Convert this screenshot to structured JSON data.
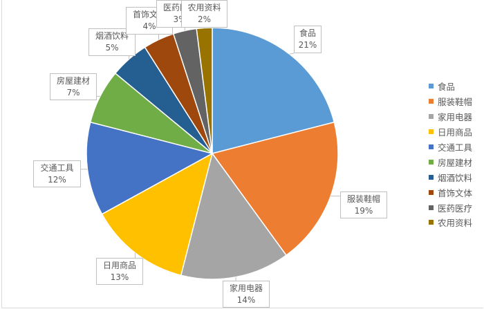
{
  "chart_data": {
    "type": "pie",
    "categories": [
      "食品",
      "服装鞋帽",
      "家用电器",
      "日用商品",
      "交通工具",
      "房屋建材",
      "烟酒饮料",
      "首饰文体",
      "医药医疗",
      "农用资料"
    ],
    "values": [
      21,
      19,
      14,
      13,
      12,
      7,
      5,
      4,
      3,
      2
    ],
    "data_labels": [
      "21%",
      "19%",
      "14%",
      "13%",
      "12%",
      "7%",
      "5%",
      "4%",
      "3%",
      "2%"
    ],
    "colors": [
      "#5B9BD5",
      "#ED7D31",
      "#A5A5A5",
      "#FFC000",
      "#4472C4",
      "#70AD47",
      "#255E91",
      "#9E480E",
      "#636363",
      "#997300"
    ],
    "legend_position": "right"
  }
}
